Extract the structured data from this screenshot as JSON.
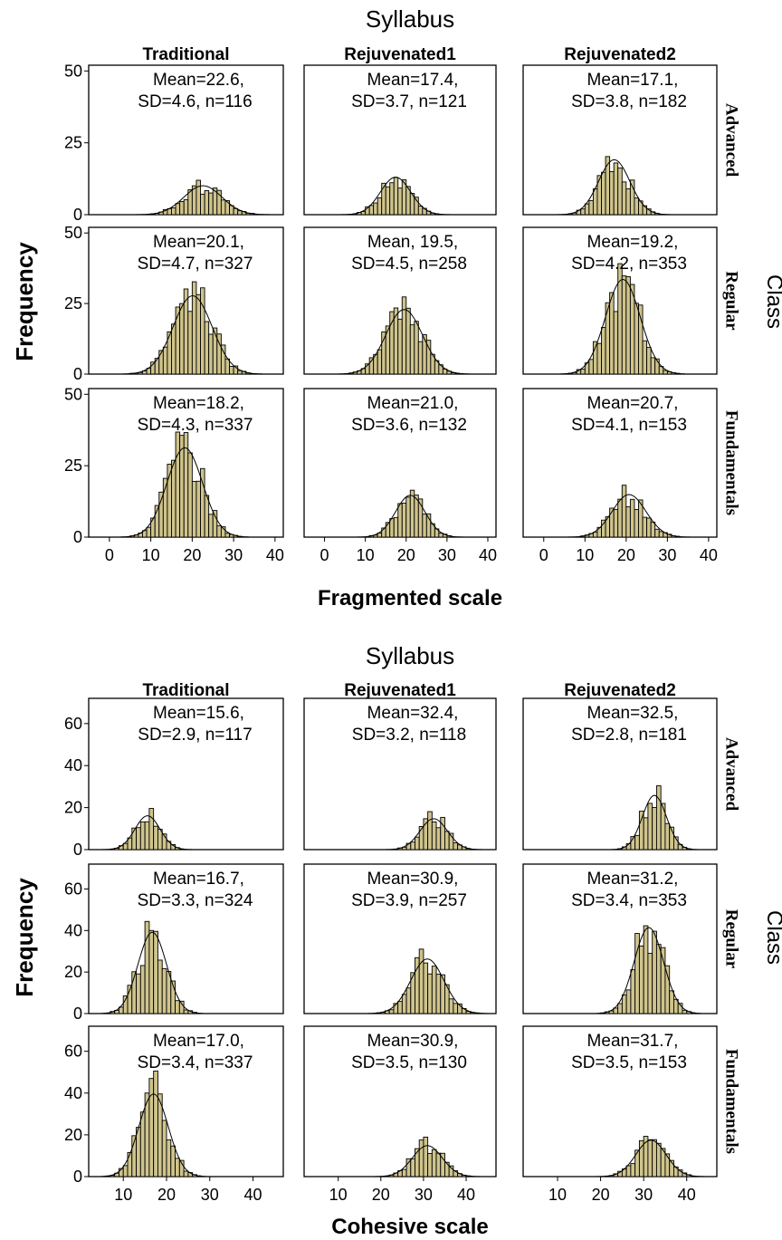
{
  "chart_data": [
    {
      "type": "histogram",
      "title": "Syllabus",
      "xlabel": "Fragmented scale",
      "ylabel": "Frequency",
      "row_title": "Class",
      "columns": [
        "Traditional",
        "Rejuvenated1",
        "Rejuvenated2"
      ],
      "rows": [
        "Advanced",
        "Regular",
        "Fundamentals"
      ],
      "xlim": [
        -5,
        42
      ],
      "ylim": [
        0,
        52
      ],
      "xticks": [
        0,
        10,
        20,
        30,
        40
      ],
      "yticks": [
        0,
        25,
        50
      ],
      "bin_width": 1,
      "panels": [
        {
          "column": "Traditional",
          "row": "Advanced",
          "annotation": [
            "Mean=22.6,",
            "SD=4.6, n=116"
          ],
          "mean": 22.6,
          "sd": 4.6,
          "n": 116
        },
        {
          "column": "Rejuvenated1",
          "row": "Advanced",
          "annotation": [
            "Mean=17.4,",
            "SD=3.7, n=121"
          ],
          "mean": 17.4,
          "sd": 3.7,
          "n": 121
        },
        {
          "column": "Rejuvenated2",
          "row": "Advanced",
          "annotation": [
            "Mean=17.1,",
            "SD=3.8, n=182"
          ],
          "mean": 17.1,
          "sd": 3.8,
          "n": 182
        },
        {
          "column": "Traditional",
          "row": "Regular",
          "annotation": [
            "Mean=20.1,",
            "SD=4.7, n=327"
          ],
          "mean": 20.1,
          "sd": 4.7,
          "n": 327
        },
        {
          "column": "Rejuvenated1",
          "row": "Regular",
          "annotation": [
            "Mean, 19.5,",
            "SD=4.5, n=258"
          ],
          "mean": 19.5,
          "sd": 4.5,
          "n": 258
        },
        {
          "column": "Rejuvenated2",
          "row": "Regular",
          "annotation": [
            "Mean=19.2,",
            "SD=4.2, n=353"
          ],
          "mean": 19.2,
          "sd": 4.2,
          "n": 353
        },
        {
          "column": "Traditional",
          "row": "Fundamentals",
          "annotation": [
            "Mean=18.2,",
            "SD=4.3, n=337"
          ],
          "mean": 18.2,
          "sd": 4.3,
          "n": 337
        },
        {
          "column": "Rejuvenated1",
          "row": "Fundamentals",
          "annotation": [
            "Mean=21.0,",
            "SD=3.6, n=132"
          ],
          "mean": 21.0,
          "sd": 3.6,
          "n": 132
        },
        {
          "column": "Rejuvenated2",
          "row": "Fundamentals",
          "annotation": [
            "Mean=20.7,",
            "SD=4.1, n=153"
          ],
          "mean": 20.7,
          "sd": 4.1,
          "n": 153
        }
      ]
    },
    {
      "type": "histogram",
      "title": "Syllabus",
      "xlabel": "Cohesive scale",
      "ylabel": "Frequency",
      "row_title": "Class",
      "columns": [
        "Traditional",
        "Rejuvenated1",
        "Rejuvenated2"
      ],
      "rows": [
        "Advanced",
        "Regular",
        "Fundamentals"
      ],
      "xlim": [
        2,
        47
      ],
      "ylim": [
        0,
        72
      ],
      "xticks": [
        10,
        20,
        30,
        40
      ],
      "yticks": [
        0,
        20,
        40,
        60
      ],
      "bin_width": 1,
      "panels": [
        {
          "column": "Traditional",
          "row": "Advanced",
          "annotation": [
            "Mean=15.6,",
            "SD=2.9, n=117"
          ],
          "mean": 15.6,
          "sd": 2.9,
          "n": 117
        },
        {
          "column": "Rejuvenated1",
          "row": "Advanced",
          "annotation": [
            "Mean=32.4,",
            "SD=3.2, n=118"
          ],
          "mean": 32.4,
          "sd": 3.2,
          "n": 118
        },
        {
          "column": "Rejuvenated2",
          "row": "Advanced",
          "annotation": [
            "Mean=32.5,",
            "SD=2.8, n=181"
          ],
          "mean": 32.5,
          "sd": 2.8,
          "n": 181
        },
        {
          "column": "Traditional",
          "row": "Regular",
          "annotation": [
            "Mean=16.7,",
            "SD=3.3, n=324"
          ],
          "mean": 16.7,
          "sd": 3.3,
          "n": 324
        },
        {
          "column": "Rejuvenated1",
          "row": "Regular",
          "annotation": [
            "Mean=30.9,",
            "SD=3.9, n=257"
          ],
          "mean": 30.9,
          "sd": 3.9,
          "n": 257
        },
        {
          "column": "Rejuvenated2",
          "row": "Regular",
          "annotation": [
            "Mean=31.2,",
            "SD=3.4, n=353"
          ],
          "mean": 31.2,
          "sd": 3.4,
          "n": 353
        },
        {
          "column": "Traditional",
          "row": "Fundamentals",
          "annotation": [
            "Mean=17.0,",
            "SD=3.4, n=337"
          ],
          "mean": 17.0,
          "sd": 3.4,
          "n": 337
        },
        {
          "column": "Rejuvenated1",
          "row": "Fundamentals",
          "annotation": [
            "Mean=30.9,",
            "SD=3.5, n=130"
          ],
          "mean": 30.9,
          "sd": 3.5,
          "n": 130
        },
        {
          "column": "Rejuvenated2",
          "row": "Fundamentals",
          "annotation": [
            "Mean=31.7,",
            "SD=3.5, n=153"
          ],
          "mean": 31.7,
          "sd": 3.5,
          "n": 153
        }
      ]
    }
  ]
}
